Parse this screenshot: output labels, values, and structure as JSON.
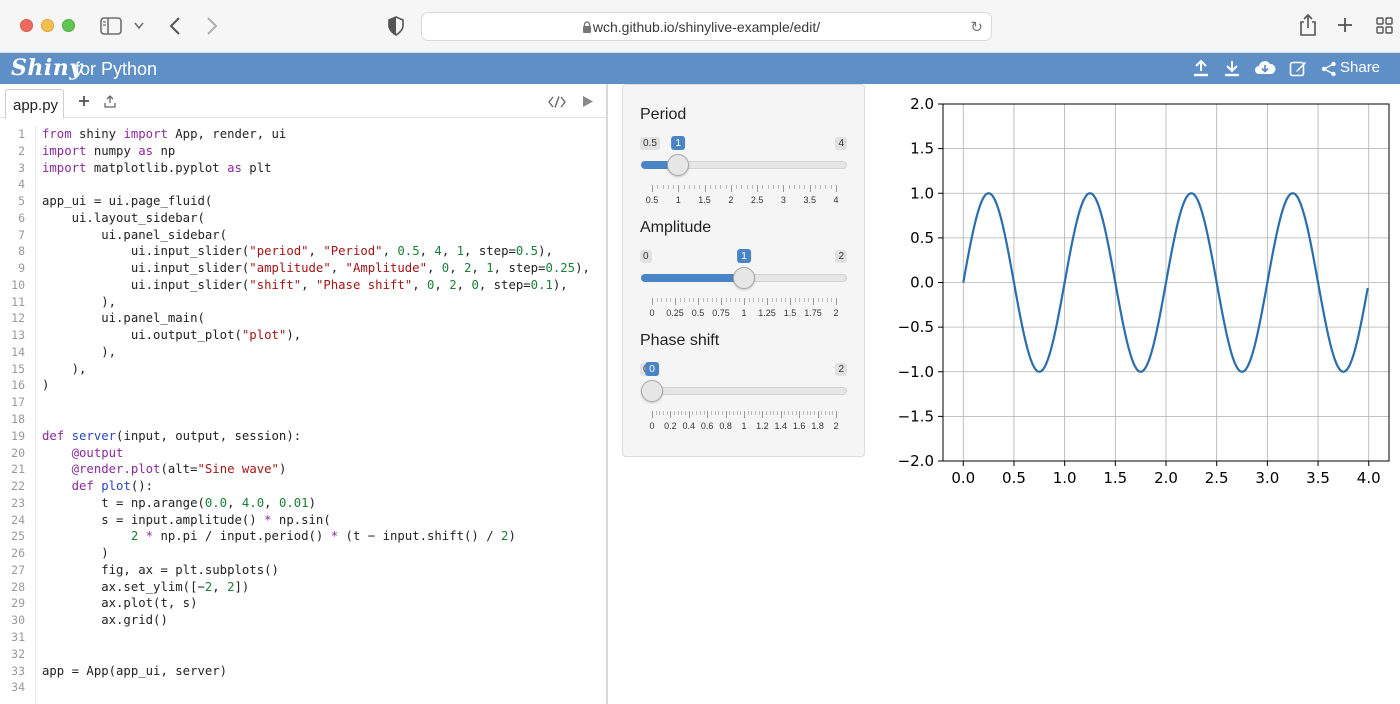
{
  "browser": {
    "url": "wch.github.io/shinylive-example/edit/"
  },
  "header": {
    "logo": "Shiny",
    "subtitle": "for Python",
    "share_label": "Share"
  },
  "editor": {
    "tab_name": "app.py",
    "line_numbers": [
      "1",
      "2",
      "3",
      "4",
      "5",
      "6",
      "7",
      "8",
      "9",
      "10",
      "11",
      "12",
      "13",
      "14",
      "15",
      "16",
      "17",
      "18",
      "19",
      "20",
      "21",
      "22",
      "23",
      "24",
      "25",
      "26",
      "27",
      "28",
      "29",
      "30",
      "31",
      "32",
      "33",
      "34"
    ]
  },
  "sliders": [
    {
      "label": "Period",
      "min_label": "0.5",
      "max_label": "4",
      "value_label": "1",
      "min": 0.5,
      "max": 4,
      "value": 1,
      "ticks": [
        "0.5",
        "1",
        "1.5",
        "2",
        "2.5",
        "3",
        "3.5",
        "4"
      ]
    },
    {
      "label": "Amplitude",
      "min_label": "0",
      "max_label": "2",
      "value_label": "1",
      "min": 0,
      "max": 2,
      "value": 1,
      "ticks": [
        "0",
        "0.25",
        "0.5",
        "0.75",
        "1",
        "1.25",
        "1.5",
        "1.75",
        "2"
      ]
    },
    {
      "label": "Phase shift",
      "min_label": "0",
      "max_label": "2",
      "value_label": "0",
      "min": 0,
      "max": 2,
      "value": 0,
      "ticks": [
        "0",
        "0.2",
        "0.4",
        "0.6",
        "0.8",
        "1",
        "1.2",
        "1.4",
        "1.6",
        "1.8",
        "2"
      ]
    }
  ],
  "chart_data": {
    "type": "line",
    "x_ticks": [
      "0.0",
      "0.5",
      "1.0",
      "1.5",
      "2.0",
      "2.5",
      "3.0",
      "3.5",
      "4.0"
    ],
    "y_ticks": [
      "2.0",
      "1.5",
      "1.0",
      "0.5",
      "0.0",
      "−0.5",
      "−1.0",
      "−1.5",
      "−2.0"
    ],
    "xlim": [
      -0.2,
      4.2
    ],
    "ylim": [
      -2,
      2
    ],
    "grid": true,
    "series_color": "#2a6ead",
    "period": 1,
    "amplitude": 1,
    "shift": 0,
    "x_start": 0,
    "x_end": 3.99,
    "x_step": 0.01
  }
}
